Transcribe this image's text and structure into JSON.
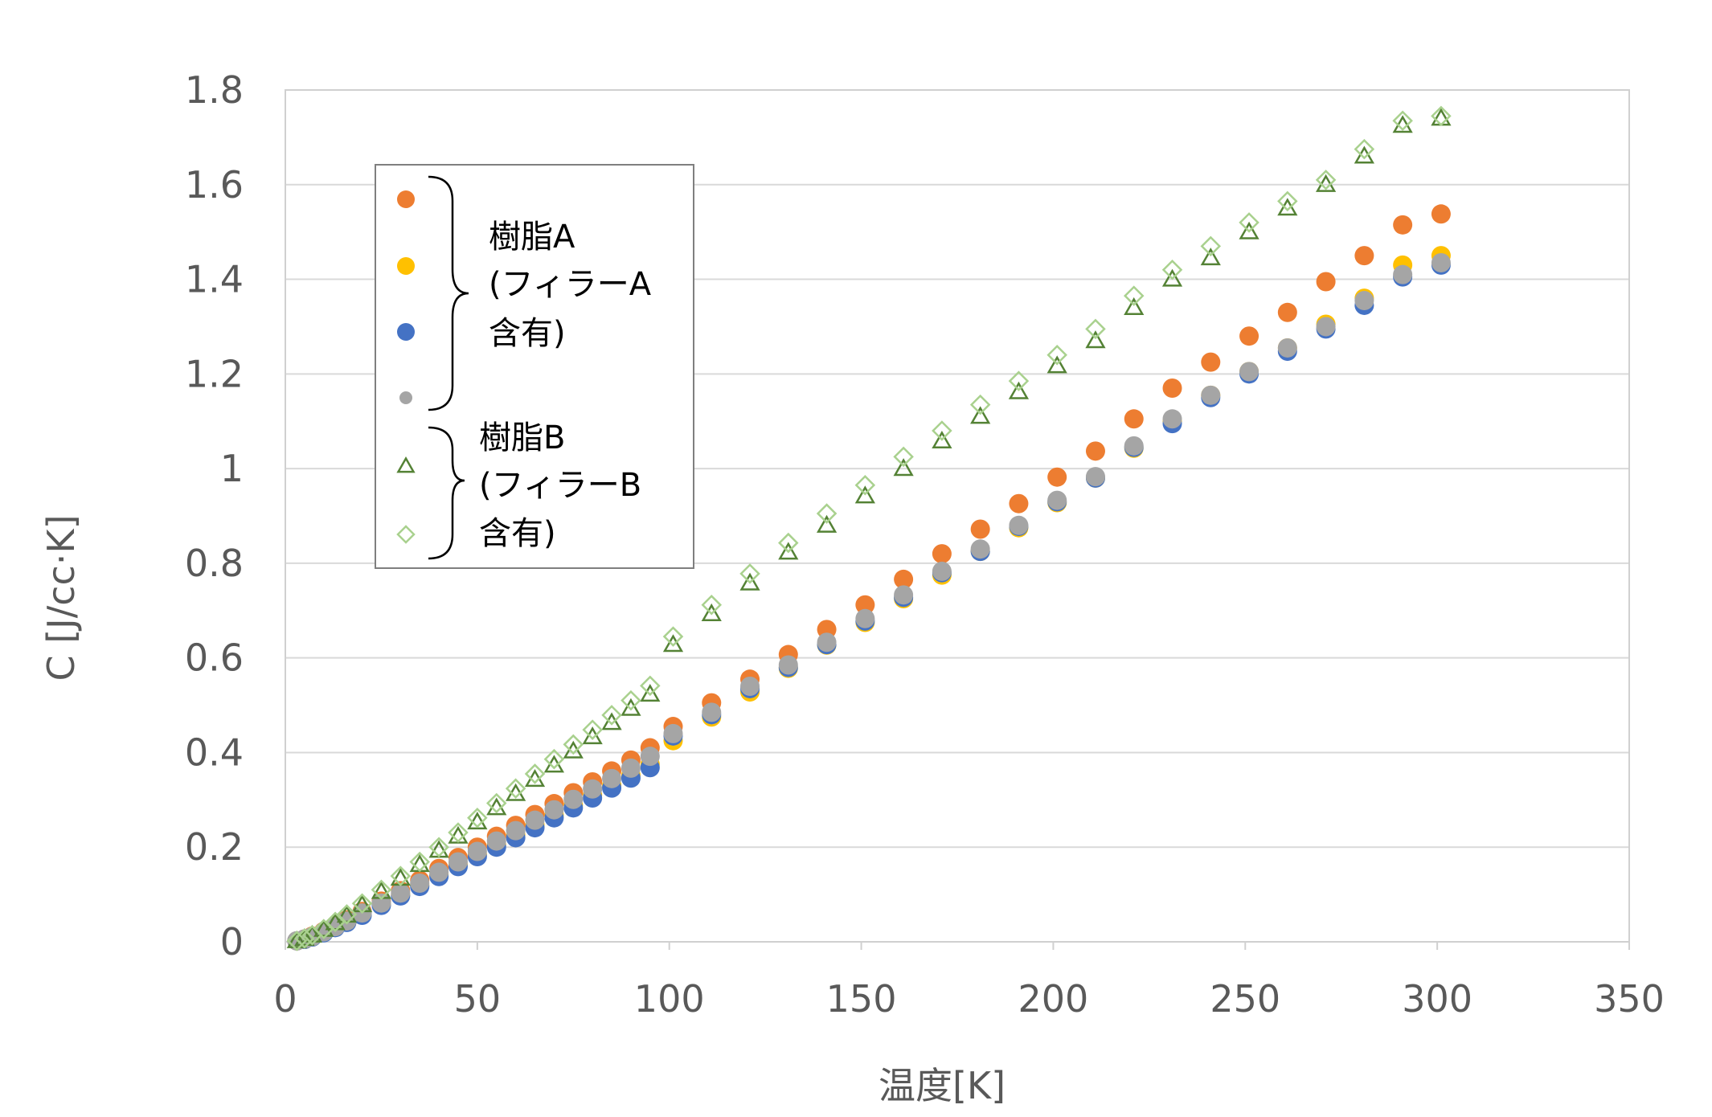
{
  "chart_data": {
    "type": "scatter",
    "title": "",
    "xlabel": "温度[K]",
    "ylabel": "C [J/cc·K]",
    "xlim": [
      0,
      350
    ],
    "ylim": [
      0,
      1.8
    ],
    "xticks": [
      0,
      50,
      100,
      150,
      200,
      250,
      300,
      350
    ],
    "yticks": [
      0,
      0.2,
      0.4,
      0.6,
      0.8,
      1,
      1.2,
      1.4,
      1.6,
      1.8
    ],
    "xtick_labels": [
      "0",
      "50",
      "100",
      "150",
      "200",
      "250",
      "300",
      "350"
    ],
    "ytick_labels": [
      "0",
      "0.2",
      "0.4",
      "0.6",
      "0.8",
      "1",
      "1.2",
      "1.4",
      "1.6",
      "1.8"
    ],
    "grid": "horizontal",
    "legend_position": "top-left",
    "legend_groups": [
      {
        "lines": [
          "樹脂A",
          "(フィラーA",
          "含有)"
        ],
        "series": [
          0,
          1,
          2,
          3
        ]
      },
      {
        "lines": [
          "樹脂B",
          "(フィラーB",
          "含有)"
        ],
        "series": [
          4,
          5
        ]
      }
    ],
    "series": [
      {
        "marker": "circle",
        "color": "#ED7D31",
        "points": [
          [
            3,
            0.002
          ],
          [
            5,
            0.006
          ],
          [
            7,
            0.012
          ],
          [
            10,
            0.022
          ],
          [
            13,
            0.034
          ],
          [
            16,
            0.046
          ],
          [
            20,
            0.064
          ],
          [
            25,
            0.086
          ],
          [
            30,
            0.108
          ],
          [
            35,
            0.13
          ],
          [
            40,
            0.155
          ],
          [
            45,
            0.178
          ],
          [
            50,
            0.2
          ],
          [
            55,
            0.223
          ],
          [
            60,
            0.246
          ],
          [
            65,
            0.269
          ],
          [
            70,
            0.292
          ],
          [
            75,
            0.315
          ],
          [
            80,
            0.338
          ],
          [
            85,
            0.361
          ],
          [
            90,
            0.384
          ],
          [
            95,
            0.41
          ],
          [
            101,
            0.455
          ],
          [
            111,
            0.505
          ],
          [
            121,
            0.555
          ],
          [
            131,
            0.607
          ],
          [
            141,
            0.66
          ],
          [
            151,
            0.712
          ],
          [
            161,
            0.766
          ],
          [
            171,
            0.82
          ],
          [
            181,
            0.872
          ],
          [
            191,
            0.926
          ],
          [
            201,
            0.982
          ],
          [
            211,
            1.037
          ],
          [
            221,
            1.105
          ],
          [
            231,
            1.17
          ],
          [
            241,
            1.225
          ],
          [
            251,
            1.28
          ],
          [
            261,
            1.33
          ],
          [
            271,
            1.395
          ],
          [
            281,
            1.45
          ],
          [
            291,
            1.515
          ],
          [
            301,
            1.538
          ]
        ]
      },
      {
        "marker": "circle",
        "color": "#FFC000",
        "points": [
          [
            3,
            0.002
          ],
          [
            5,
            0.005
          ],
          [
            7,
            0.011
          ],
          [
            10,
            0.02
          ],
          [
            13,
            0.031
          ],
          [
            16,
            0.042
          ],
          [
            20,
            0.058
          ],
          [
            25,
            0.079
          ],
          [
            30,
            0.099
          ],
          [
            35,
            0.12
          ],
          [
            40,
            0.142
          ],
          [
            45,
            0.163
          ],
          [
            50,
            0.184
          ],
          [
            55,
            0.205
          ],
          [
            60,
            0.226
          ],
          [
            65,
            0.247
          ],
          [
            70,
            0.268
          ],
          [
            75,
            0.289
          ],
          [
            80,
            0.31
          ],
          [
            85,
            0.331
          ],
          [
            90,
            0.352
          ],
          [
            95,
            0.375
          ],
          [
            101,
            0.425
          ],
          [
            111,
            0.475
          ],
          [
            121,
            0.528
          ],
          [
            131,
            0.578
          ],
          [
            141,
            0.627
          ],
          [
            151,
            0.675
          ],
          [
            161,
            0.725
          ],
          [
            171,
            0.775
          ],
          [
            181,
            0.825
          ],
          [
            191,
            0.875
          ],
          [
            201,
            0.928
          ],
          [
            211,
            0.98
          ],
          [
            221,
            1.043
          ],
          [
            231,
            1.1
          ],
          [
            241,
            1.155
          ],
          [
            251,
            1.205
          ],
          [
            261,
            1.255
          ],
          [
            271,
            1.305
          ],
          [
            281,
            1.36
          ],
          [
            291,
            1.43
          ],
          [
            301,
            1.45
          ]
        ]
      },
      {
        "marker": "circle",
        "color": "#4472C4",
        "points": [
          [
            3,
            0.002
          ],
          [
            5,
            0.005
          ],
          [
            7,
            0.01
          ],
          [
            10,
            0.019
          ],
          [
            13,
            0.03
          ],
          [
            16,
            0.041
          ],
          [
            20,
            0.056
          ],
          [
            25,
            0.077
          ],
          [
            30,
            0.097
          ],
          [
            35,
            0.117
          ],
          [
            40,
            0.138
          ],
          [
            45,
            0.159
          ],
          [
            50,
            0.18
          ],
          [
            55,
            0.2
          ],
          [
            60,
            0.22
          ],
          [
            65,
            0.241
          ],
          [
            70,
            0.262
          ],
          [
            75,
            0.283
          ],
          [
            80,
            0.304
          ],
          [
            85,
            0.325
          ],
          [
            90,
            0.346
          ],
          [
            95,
            0.368
          ],
          [
            101,
            0.435
          ],
          [
            111,
            0.48
          ],
          [
            121,
            0.535
          ],
          [
            131,
            0.58
          ],
          [
            141,
            0.628
          ],
          [
            151,
            0.678
          ],
          [
            161,
            0.728
          ],
          [
            171,
            0.78
          ],
          [
            181,
            0.825
          ],
          [
            191,
            0.878
          ],
          [
            201,
            0.93
          ],
          [
            211,
            0.98
          ],
          [
            221,
            1.045
          ],
          [
            231,
            1.095
          ],
          [
            241,
            1.15
          ],
          [
            251,
            1.2
          ],
          [
            261,
            1.248
          ],
          [
            271,
            1.295
          ],
          [
            281,
            1.345
          ],
          [
            291,
            1.405
          ],
          [
            301,
            1.43
          ]
        ]
      },
      {
        "marker": "circle",
        "color": "#A5A5A5",
        "points": [
          [
            3,
            0.002
          ],
          [
            5,
            0.006
          ],
          [
            7,
            0.011
          ],
          [
            10,
            0.021
          ],
          [
            13,
            0.032
          ],
          [
            16,
            0.044
          ],
          [
            20,
            0.061
          ],
          [
            25,
            0.082
          ],
          [
            30,
            0.103
          ],
          [
            35,
            0.124
          ],
          [
            40,
            0.147
          ],
          [
            45,
            0.169
          ],
          [
            50,
            0.191
          ],
          [
            55,
            0.213
          ],
          [
            60,
            0.235
          ],
          [
            65,
            0.257
          ],
          [
            70,
            0.279
          ],
          [
            75,
            0.301
          ],
          [
            80,
            0.323
          ],
          [
            85,
            0.345
          ],
          [
            90,
            0.367
          ],
          [
            95,
            0.392
          ],
          [
            101,
            0.44
          ],
          [
            111,
            0.485
          ],
          [
            121,
            0.54
          ],
          [
            131,
            0.585
          ],
          [
            141,
            0.633
          ],
          [
            151,
            0.683
          ],
          [
            161,
            0.733
          ],
          [
            171,
            0.783
          ],
          [
            181,
            0.83
          ],
          [
            191,
            0.88
          ],
          [
            201,
            0.933
          ],
          [
            211,
            0.983
          ],
          [
            221,
            1.048
          ],
          [
            231,
            1.105
          ],
          [
            241,
            1.155
          ],
          [
            251,
            1.205
          ],
          [
            261,
            1.255
          ],
          [
            271,
            1.3
          ],
          [
            281,
            1.355
          ],
          [
            291,
            1.41
          ],
          [
            301,
            1.435
          ]
        ]
      },
      {
        "marker": "triangle",
        "color": "#548235",
        "points": [
          [
            3,
            0.002
          ],
          [
            5,
            0.007
          ],
          [
            7,
            0.014
          ],
          [
            10,
            0.026
          ],
          [
            13,
            0.04
          ],
          [
            16,
            0.056
          ],
          [
            20,
            0.078
          ],
          [
            25,
            0.106
          ],
          [
            30,
            0.134
          ],
          [
            35,
            0.163
          ],
          [
            40,
            0.193
          ],
          [
            45,
            0.223
          ],
          [
            50,
            0.253
          ],
          [
            55,
            0.283
          ],
          [
            60,
            0.313
          ],
          [
            65,
            0.343
          ],
          [
            70,
            0.373
          ],
          [
            75,
            0.403
          ],
          [
            80,
            0.433
          ],
          [
            85,
            0.463
          ],
          [
            90,
            0.493
          ],
          [
            95,
            0.523
          ],
          [
            101,
            0.628
          ],
          [
            111,
            0.693
          ],
          [
            121,
            0.758
          ],
          [
            131,
            0.823
          ],
          [
            141,
            0.88
          ],
          [
            151,
            0.942
          ],
          [
            161,
            1.0
          ],
          [
            171,
            1.058
          ],
          [
            181,
            1.11
          ],
          [
            191,
            1.162
          ],
          [
            201,
            1.217
          ],
          [
            211,
            1.27
          ],
          [
            221,
            1.34
          ],
          [
            231,
            1.4
          ],
          [
            241,
            1.445
          ],
          [
            251,
            1.5
          ],
          [
            261,
            1.55
          ],
          [
            271,
            1.6
          ],
          [
            281,
            1.66
          ],
          [
            291,
            1.725
          ],
          [
            301,
            1.74
          ]
        ]
      },
      {
        "marker": "diamond",
        "color": "#A9D18E",
        "points": [
          [
            3,
            0.002
          ],
          [
            5,
            0.007
          ],
          [
            7,
            0.014
          ],
          [
            10,
            0.027
          ],
          [
            13,
            0.042
          ],
          [
            16,
            0.058
          ],
          [
            20,
            0.081
          ],
          [
            25,
            0.11
          ],
          [
            30,
            0.139
          ],
          [
            35,
            0.169
          ],
          [
            40,
            0.2
          ],
          [
            45,
            0.231
          ],
          [
            50,
            0.262
          ],
          [
            55,
            0.293
          ],
          [
            60,
            0.324
          ],
          [
            65,
            0.355
          ],
          [
            70,
            0.386
          ],
          [
            75,
            0.417
          ],
          [
            80,
            0.448
          ],
          [
            85,
            0.479
          ],
          [
            90,
            0.51
          ],
          [
            95,
            0.541
          ],
          [
            101,
            0.645
          ],
          [
            111,
            0.712
          ],
          [
            121,
            0.778
          ],
          [
            131,
            0.843
          ],
          [
            141,
            0.905
          ],
          [
            151,
            0.965
          ],
          [
            161,
            1.025
          ],
          [
            171,
            1.08
          ],
          [
            181,
            1.135
          ],
          [
            191,
            1.185
          ],
          [
            201,
            1.24
          ],
          [
            211,
            1.295
          ],
          [
            221,
            1.365
          ],
          [
            231,
            1.42
          ],
          [
            241,
            1.47
          ],
          [
            251,
            1.52
          ],
          [
            261,
            1.565
          ],
          [
            271,
            1.61
          ],
          [
            281,
            1.675
          ],
          [
            291,
            1.735
          ],
          [
            301,
            1.745
          ]
        ]
      }
    ]
  }
}
